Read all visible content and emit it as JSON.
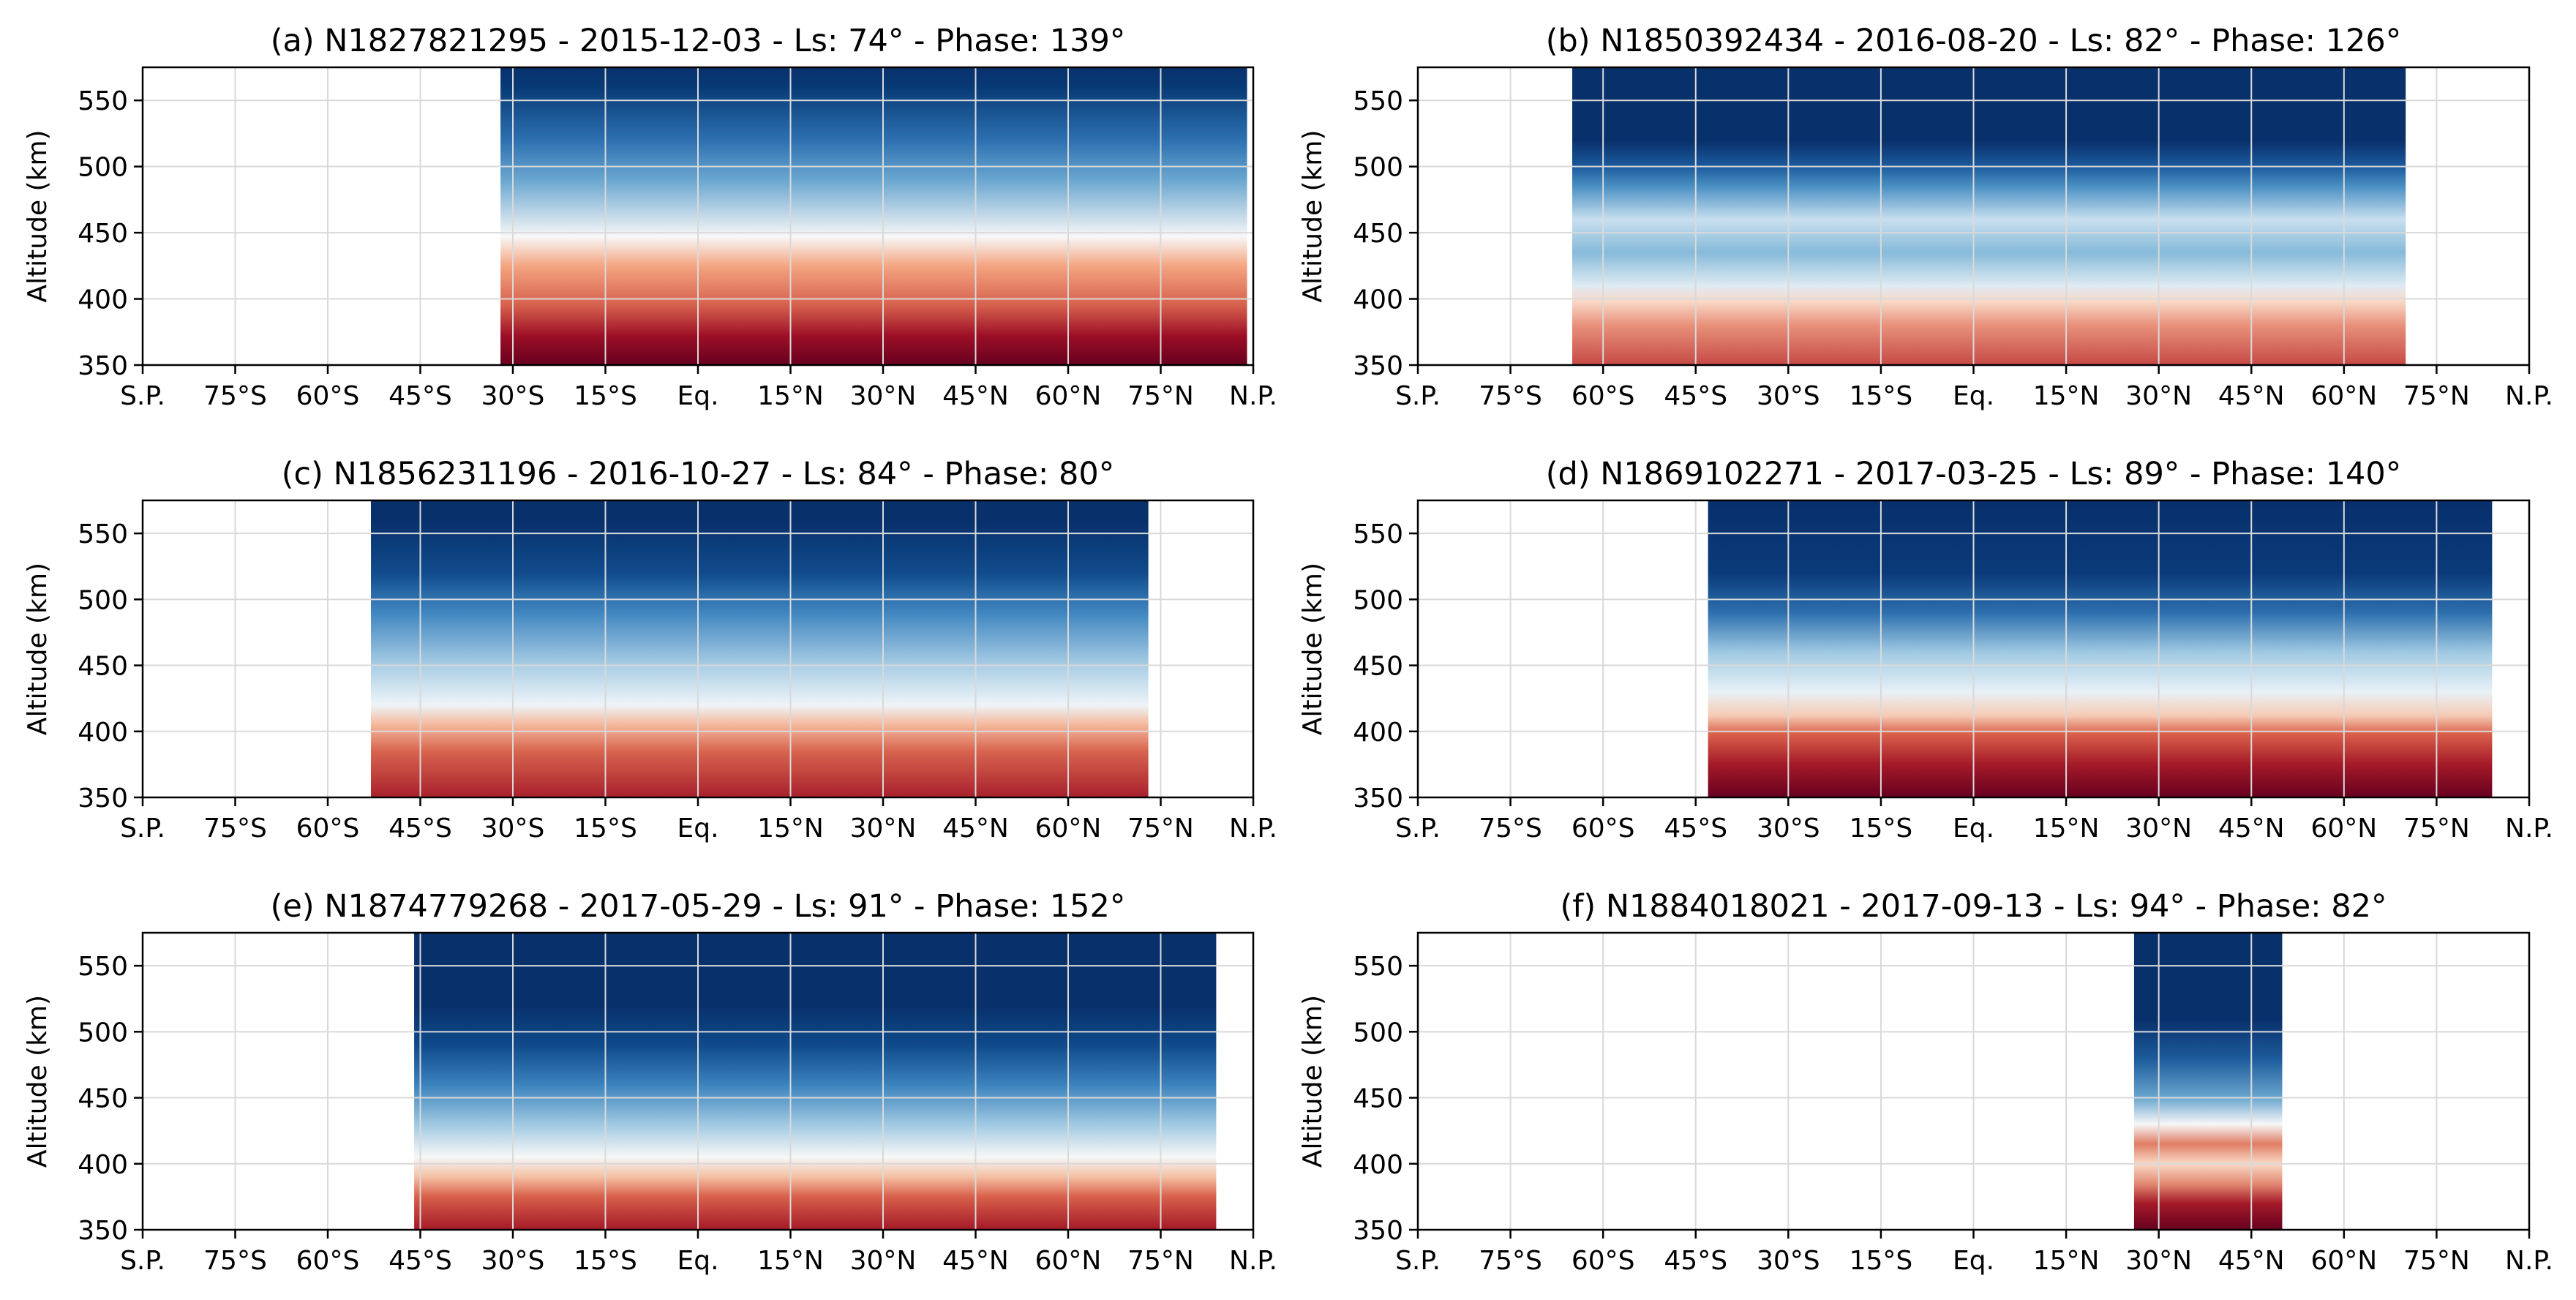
{
  "chart_data": [
    {
      "type": "heatmap",
      "title": "(a) N1827821295 - 2015-12-03 - Ls: 74° - Phase: 139°",
      "ylabel": "Altitude (km)",
      "xlabel": "",
      "xlim": [
        -90,
        90
      ],
      "ylim": [
        350,
        575
      ],
      "grid": true,
      "colormap": "RdBu (red at low altitude, blue at high altitude)",
      "data_extent": {
        "lat": [
          -32,
          89
        ],
        "alt": [
          350,
          575
        ]
      },
      "profile": [
        [
          350,
          "#67001f"
        ],
        [
          372,
          "#9c0f26"
        ],
        [
          395,
          "#d6604d"
        ],
        [
          425,
          "#f4a582"
        ],
        [
          447,
          "#f7f7f7"
        ],
        [
          490,
          "#6aa6cf"
        ],
        [
          520,
          "#2c70b0"
        ],
        [
          560,
          "#083a76"
        ],
        [
          575,
          "#08306b"
        ]
      ]
    },
    {
      "type": "heatmap",
      "title": "(b) N1850392434 - 2016-08-20 - Ls: 82° - Phase: 126°",
      "ylabel": "Altitude (km)",
      "xlabel": "",
      "xlim": [
        -90,
        90
      ],
      "ylim": [
        350,
        575
      ],
      "grid": true,
      "colormap": "RdBu (red at low altitude, blue at high altitude)",
      "data_extent": {
        "lat": [
          -65,
          70
        ],
        "alt": [
          350,
          575
        ]
      },
      "profile": [
        [
          350,
          "#c64a46"
        ],
        [
          380,
          "#e8907a"
        ],
        [
          398,
          "#f9d8c6"
        ],
        [
          410,
          "#deebf3"
        ],
        [
          435,
          "#87bad9"
        ],
        [
          460,
          "#c8dfee"
        ],
        [
          485,
          "#4a90c4"
        ],
        [
          500,
          "#1b5a9c"
        ],
        [
          520,
          "#08306b"
        ],
        [
          575,
          "#08306b"
        ]
      ]
    },
    {
      "type": "heatmap",
      "title": "(c) N1856231196 - 2016-10-27 - Ls: 84° - Phase: 80°",
      "ylabel": "Altitude (km)",
      "xlabel": "",
      "xlim": [
        -90,
        90
      ],
      "ylim": [
        350,
        575
      ],
      "grid": true,
      "colormap": "RdBu (red at low altitude, blue at high altitude)",
      "data_extent": {
        "lat": [
          -53,
          73
        ],
        "alt": [
          350,
          575
        ]
      },
      "profile": [
        [
          350,
          "#a8202c"
        ],
        [
          385,
          "#d8644f"
        ],
        [
          405,
          "#f4b89c"
        ],
        [
          420,
          "#eef4f8"
        ],
        [
          450,
          "#a9cde4"
        ],
        [
          490,
          "#3f86c0"
        ],
        [
          520,
          "#104b8c"
        ],
        [
          560,
          "#08306b"
        ],
        [
          575,
          "#08306b"
        ]
      ]
    },
    {
      "type": "heatmap",
      "title": "(d) N1869102271 - 2017-03-25 - Ls: 89° - Phase: 140°",
      "ylabel": "Altitude (km)",
      "xlabel": "",
      "xlim": [
        -90,
        90
      ],
      "ylim": [
        350,
        575
      ],
      "grid": true,
      "colormap": "RdBu (red at low altitude, blue at high altitude)",
      "data_extent": {
        "lat": [
          -43,
          84
        ],
        "alt": [
          350,
          575
        ]
      },
      "profile": [
        [
          350,
          "#67001f"
        ],
        [
          375,
          "#a41a28"
        ],
        [
          398,
          "#d9604b"
        ],
        [
          412,
          "#f6cbb4"
        ],
        [
          430,
          "#e8f1f7"
        ],
        [
          460,
          "#9fc9e2"
        ],
        [
          490,
          "#2d6fae"
        ],
        [
          520,
          "#0a3a7a"
        ],
        [
          575,
          "#08306b"
        ]
      ]
    },
    {
      "type": "heatmap",
      "title": "(e) N1874779268 - 2017-05-29 - Ls: 91° - Phase: 152°",
      "ylabel": "Altitude (km)",
      "xlabel": "",
      "xlim": [
        -90,
        90
      ],
      "ylim": [
        350,
        575
      ],
      "grid": true,
      "colormap": "RdBu (red at low altitude, blue at high altitude)",
      "data_extent": {
        "lat": [
          -46,
          84
        ],
        "alt": [
          350,
          575
        ]
      },
      "profile": [
        [
          350,
          "#a41a28"
        ],
        [
          375,
          "#d8604b"
        ],
        [
          390,
          "#f4bfa3"
        ],
        [
          405,
          "#f7f7f7"
        ],
        [
          430,
          "#9fc9e2"
        ],
        [
          460,
          "#3b82bd"
        ],
        [
          490,
          "#0f4a8a"
        ],
        [
          520,
          "#08306b"
        ],
        [
          575,
          "#08306b"
        ]
      ]
    },
    {
      "type": "heatmap",
      "title": "(f) N1884018021 - 2017-09-13 - Ls: 94° - Phase: 82°",
      "ylabel": "Altitude (km)",
      "xlabel": "",
      "xlim": [
        -90,
        90
      ],
      "ylim": [
        350,
        575
      ],
      "grid": true,
      "colormap": "RdBu (red at low altitude, blue at high altitude)",
      "data_extent": {
        "lat": [
          26,
          50
        ],
        "alt": [
          350,
          575
        ]
      },
      "profile": [
        [
          350,
          "#67001f"
        ],
        [
          370,
          "#a41a28"
        ],
        [
          385,
          "#e48a72"
        ],
        [
          400,
          "#f9d9c7"
        ],
        [
          415,
          "#e07d63"
        ],
        [
          430,
          "#f7f7f7"
        ],
        [
          450,
          "#6aa6cf"
        ],
        [
          480,
          "#1c5a9a"
        ],
        [
          510,
          "#08306b"
        ],
        [
          575,
          "#08306b"
        ]
      ]
    }
  ],
  "axes": {
    "x_tick_values": [
      -90,
      -75,
      -60,
      -45,
      -30,
      -15,
      0,
      15,
      30,
      45,
      60,
      75,
      90
    ],
    "x_tick_labels": [
      "S.P.",
      "75°S",
      "60°S",
      "45°S",
      "30°S",
      "15°S",
      "Eq.",
      "15°N",
      "30°N",
      "45°N",
      "60°N",
      "75°N",
      "N.P."
    ],
    "y_tick_values": [
      350,
      400,
      450,
      500,
      550
    ],
    "y_tick_labels": [
      "350",
      "400",
      "450",
      "500",
      "550"
    ],
    "colors": {
      "grid": "#d9d9d9",
      "axes": "#000000"
    }
  }
}
